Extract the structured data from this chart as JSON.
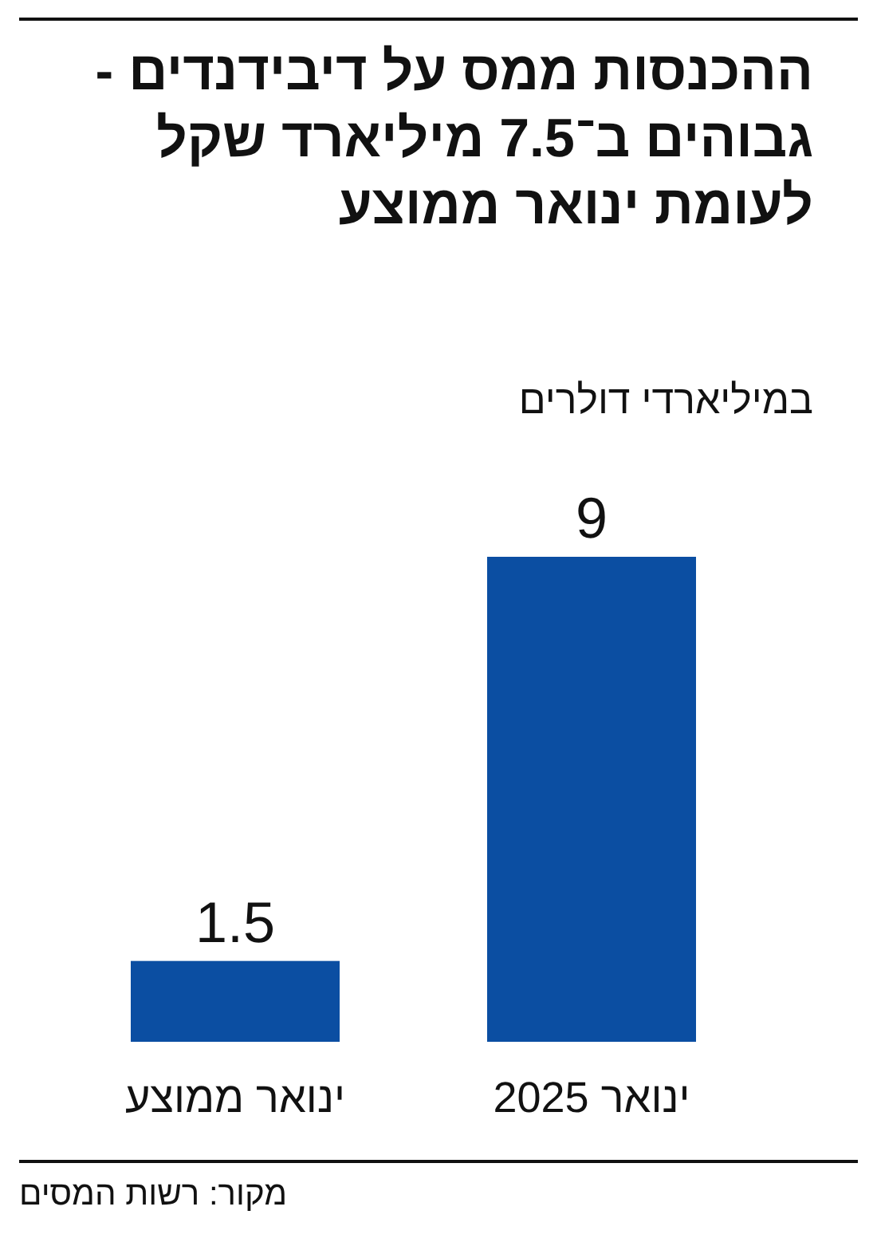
{
  "chart_data": {
    "type": "bar",
    "title": "ההכנסות ממס על דיבידנדים - גבוהים ב־7.5 מיליארד שקל לעומת ינואר ממוצע",
    "subtitle": "במיליארדי דולרים",
    "categories": [
      "ינואר ממוצע",
      "ינואר 2025"
    ],
    "values": [
      1.5,
      9
    ],
    "color": "#0b4ea2",
    "data_labels": true,
    "annotations": [
      "מקור: רשות המסים"
    ]
  }
}
